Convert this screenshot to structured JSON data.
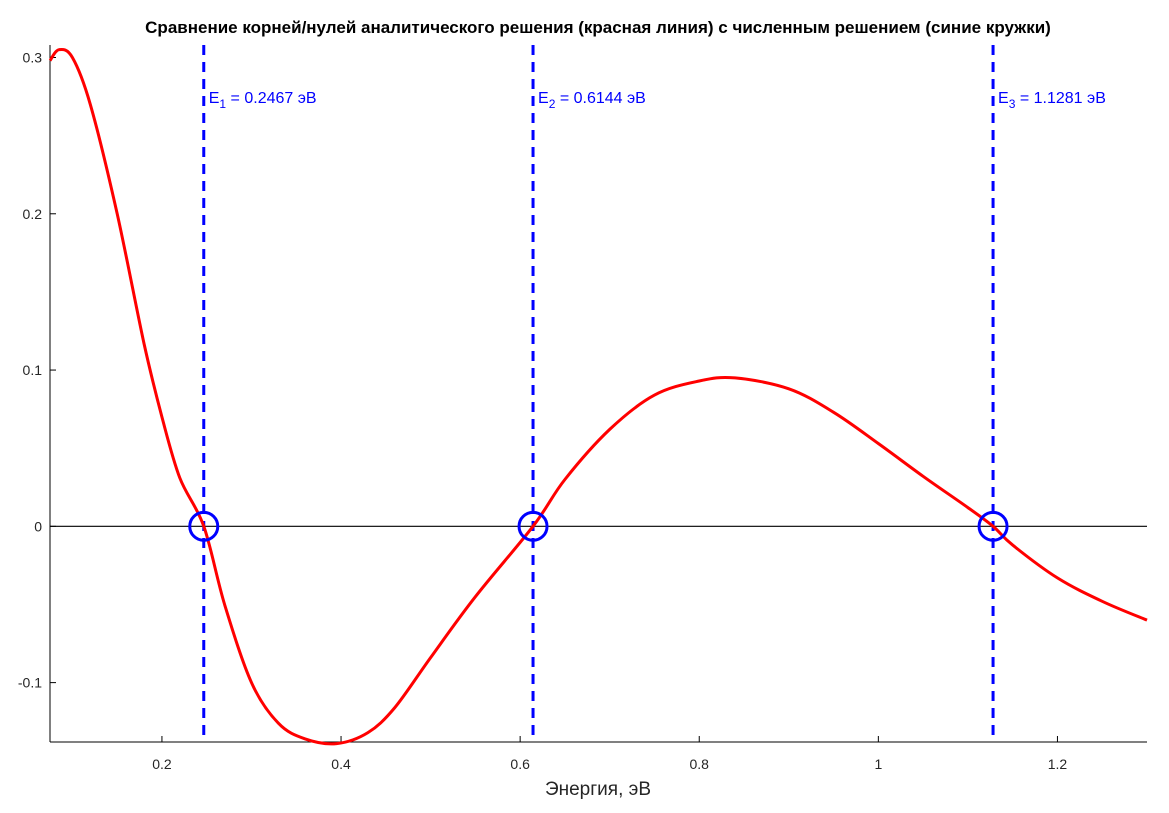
{
  "chart_data": {
    "type": "line",
    "title": "Сравнение корней/нулей аналитического решения (красная линия) с численным решением (синие кружки)",
    "xlabel": "Энергия, эВ",
    "ylabel": "",
    "xlim": [
      0.075,
      1.3
    ],
    "ylim": [
      -0.138,
      0.308
    ],
    "xticks": [
      0.2,
      0.4,
      0.6,
      0.8,
      1,
      1.2
    ],
    "xtick_labels": [
      "0.2",
      "0.4",
      "0.6",
      "0.8",
      "1",
      "1.2"
    ],
    "yticks": [
      -0.1,
      0,
      0.1,
      0.2,
      0.3
    ],
    "ytick_labels": [
      "-0.1",
      "0",
      "0.1",
      "0.2",
      "0.3"
    ],
    "grid": false,
    "colors": {
      "curve": "#ff0000",
      "roots": "#0000ff",
      "zero_line": "#000000"
    },
    "series": [
      {
        "style": "solid-red",
        "x": [
          0.075,
          0.085,
          0.1,
          0.12,
          0.15,
          0.18,
          0.2,
          0.22,
          0.2467,
          0.27,
          0.3,
          0.33,
          0.36,
          0.395,
          0.43,
          0.46,
          0.5,
          0.55,
          0.6144,
          0.65,
          0.7,
          0.75,
          0.8,
          0.84,
          0.9,
          0.95,
          1.0,
          1.05,
          1.1,
          1.1281,
          1.15,
          1.2,
          1.25,
          1.3
        ],
        "y": [
          0.298,
          0.305,
          0.3,
          0.27,
          0.2,
          0.117,
          0.07,
          0.031,
          0.0,
          -0.05,
          -0.1,
          -0.126,
          -0.136,
          -0.139,
          -0.132,
          -0.116,
          -0.084,
          -0.045,
          0.0,
          0.03,
          0.062,
          0.084,
          0.093,
          0.095,
          0.088,
          0.073,
          0.053,
          0.032,
          0.012,
          0.0,
          -0.012,
          -0.033,
          -0.048,
          -0.06
        ]
      }
    ],
    "roots": [
      {
        "x": 0.2467,
        "y": 0,
        "label_main": "E",
        "label_sub": "1",
        "label_rest": " = 0.2467 эВ"
      },
      {
        "x": 0.6144,
        "y": 0,
        "label_main": "E",
        "label_sub": "2",
        "label_rest": " = 0.6144 эВ"
      },
      {
        "x": 1.1281,
        "y": 0,
        "label_main": "E",
        "label_sub": "3",
        "label_rest": " = 1.1281 эВ"
      }
    ]
  }
}
